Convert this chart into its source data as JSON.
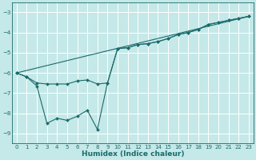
{
  "xlabel": "Humidex (Indice chaleur)",
  "xlim": [
    -0.5,
    23.5
  ],
  "ylim": [
    -9.5,
    -2.5
  ],
  "yticks": [
    -9,
    -8,
    -7,
    -6,
    -5,
    -4,
    -3
  ],
  "xticks": [
    0,
    1,
    2,
    3,
    4,
    5,
    6,
    7,
    8,
    9,
    10,
    11,
    12,
    13,
    14,
    15,
    16,
    17,
    18,
    19,
    20,
    21,
    22,
    23
  ],
  "bg_color": "#c5e8e8",
  "line_color": "#1a6b6b",
  "grid_color": "#ffffff",
  "line1_x": [
    0,
    1,
    2,
    3,
    4,
    5,
    6,
    7,
    8,
    9,
    10,
    11,
    12,
    13,
    14,
    15,
    16,
    17,
    18,
    19,
    20,
    21,
    22,
    23
  ],
  "line1_y": [
    -6.0,
    -6.2,
    -6.5,
    -6.55,
    -6.55,
    -6.55,
    -6.4,
    -6.35,
    -6.55,
    -6.5,
    -4.8,
    -4.75,
    -4.6,
    -4.55,
    -4.45,
    -4.3,
    -4.1,
    -4.0,
    -3.85,
    -3.6,
    -3.5,
    -3.4,
    -3.3,
    -3.2
  ],
  "line2_x": [
    0,
    1,
    2,
    3,
    4,
    5,
    6,
    7,
    8,
    9,
    10,
    11,
    12,
    13,
    14,
    15,
    16,
    17,
    18,
    19,
    20,
    21,
    22,
    23
  ],
  "line2_y": [
    -6.0,
    -6.2,
    -6.65,
    -8.5,
    -8.25,
    -8.35,
    -8.15,
    -7.85,
    -8.8,
    -6.5,
    -4.8,
    -4.75,
    -4.6,
    -4.55,
    -4.45,
    -4.3,
    -4.1,
    -4.0,
    -3.85,
    -3.6,
    -3.5,
    -3.4,
    -3.3,
    -3.2
  ],
  "line3_x": [
    0,
    23
  ],
  "line3_y": [
    -6.0,
    -3.2
  ],
  "figsize": [
    3.2,
    2.0
  ],
  "dpi": 100
}
